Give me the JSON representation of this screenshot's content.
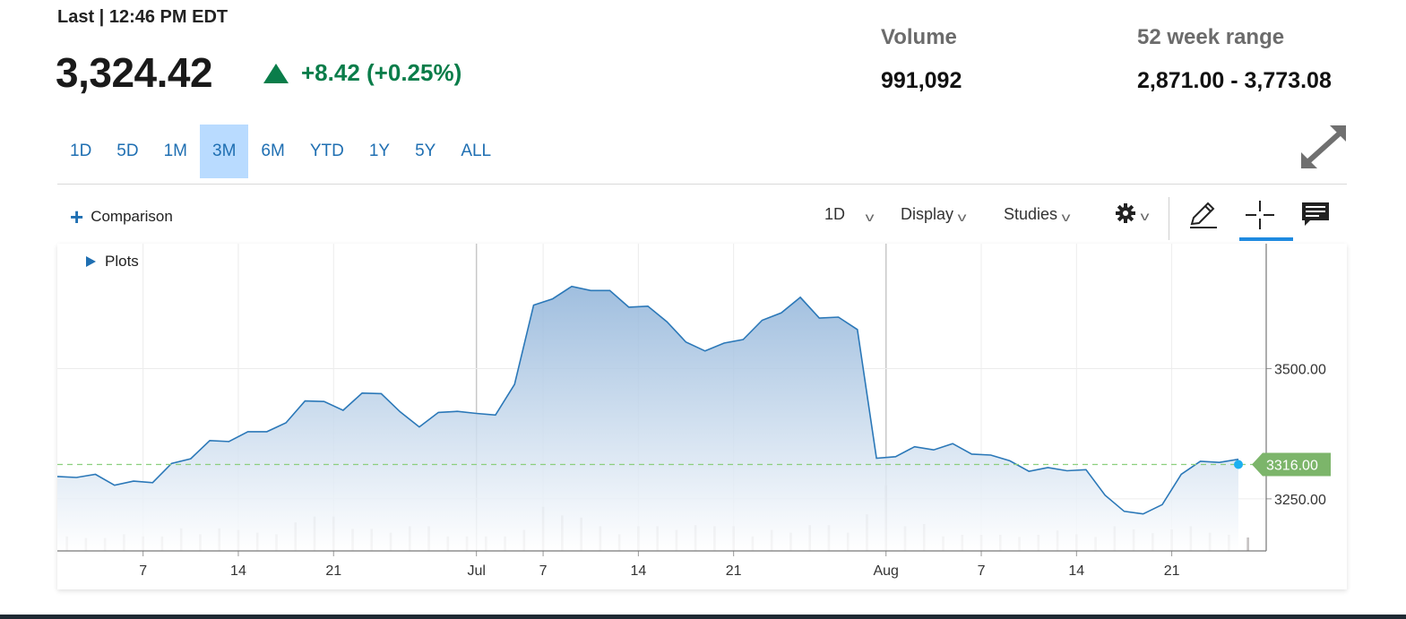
{
  "header": {
    "last_label": "Last | 12:46 PM EDT",
    "price": "3,324.42",
    "change": "+8.42 (+0.25%)",
    "volume_label": "Volume",
    "volume_value": "991,092",
    "range_label": "52 week range",
    "range_value": "2,871.00 - 3,773.08"
  },
  "range_tabs": [
    "1D",
    "5D",
    "1M",
    "3M",
    "6M",
    "YTD",
    "1Y",
    "5Y",
    "ALL"
  ],
  "active_range": "3M",
  "toolbar": {
    "comparison_label": "Comparison",
    "interval_label": "1D",
    "display_label": "Display",
    "studies_label": "Studies"
  },
  "plots_label": "Plots",
  "icons": {
    "expand": "expand-icon",
    "settings": "gear-icon",
    "draw": "pencil-icon",
    "crosshair": "crosshair-icon",
    "comments": "comment-icon"
  },
  "colors": {
    "up": "#0a7d4a",
    "link": "#1f6fb2",
    "line": "#2b78b8",
    "area_top": "#8fb3d9",
    "current_marker": "#1cb0f0",
    "price_label_bg": "#7cb56a",
    "reference_line": "#8ccf7e"
  },
  "chart_data": {
    "type": "area",
    "x_labels": [
      "7",
      "14",
      "21",
      "Jul",
      "7",
      "14",
      "21",
      "Aug",
      "7",
      "14",
      "21"
    ],
    "y_ticks": [
      "3500.00",
      "3250.00"
    ],
    "ylim": [
      3150,
      3740
    ],
    "current_value_label": "3316.00",
    "current_value": 3316,
    "series": [
      {
        "values": [
          3293,
          3291,
          3297,
          3276,
          3284,
          3281,
          3318,
          3327,
          3362,
          3360,
          3379,
          3379,
          3396,
          3438,
          3437,
          3420,
          3453,
          3452,
          3417,
          3388,
          3416,
          3418,
          3414,
          3411,
          3470,
          3622,
          3634,
          3658,
          3650,
          3650,
          3618,
          3620,
          3590,
          3551,
          3534,
          3549,
          3556,
          3593,
          3607,
          3637,
          3597,
          3599,
          3575,
          3328,
          3331,
          3350,
          3344,
          3356,
          3336,
          3334,
          3323,
          3303,
          3310,
          3304,
          3306,
          3257,
          3226,
          3221,
          3239,
          3297,
          3322,
          3320,
          3326
        ]
      }
    ],
    "volume": {
      "values": [
        0.27,
        0.24,
        0.24,
        0.31,
        0.27,
        0.27,
        0.42,
        0.31,
        0.42,
        0.39,
        0.34,
        0.31,
        0.53,
        0.64,
        0.64,
        0.41,
        0.41,
        0.34,
        0.46,
        0.46,
        0.27,
        0.27,
        0.27,
        0.27,
        0.39,
        0.82,
        0.66,
        0.62,
        0.46,
        0.31,
        0.46,
        0.46,
        0.39,
        0.48,
        0.46,
        0.46,
        0.27,
        0.39,
        0.34,
        0.48,
        0.48,
        0.34,
        0.68,
        1.22,
        0.46,
        0.5,
        0.27,
        0.3,
        0.3,
        0.3,
        0.26,
        0.3,
        0.38,
        0.31,
        0.26,
        0.46,
        0.4,
        0.33,
        0.4,
        0.46,
        0.34,
        0.3,
        0.25
      ]
    },
    "grid": true
  }
}
